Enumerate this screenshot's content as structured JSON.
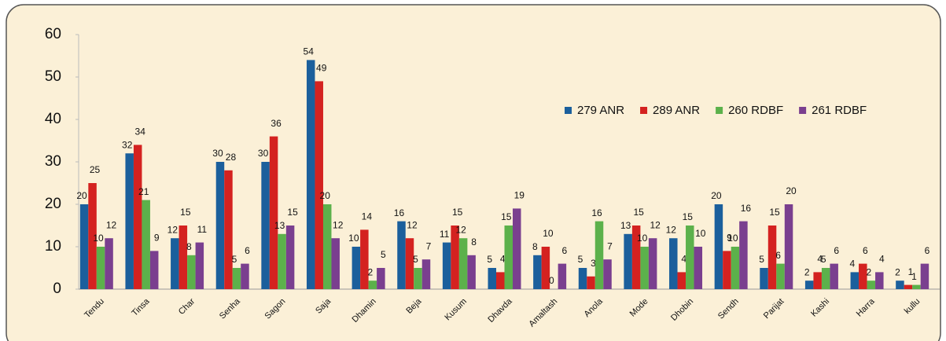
{
  "chart_data": {
    "type": "bar",
    "categories": [
      "Tendu",
      "Tinsa",
      "Char",
      "Senha",
      "Sagon",
      "Saja",
      "Dhamin",
      "Beja",
      "Kusum",
      "Dhavda",
      "Amaltash",
      "Anola",
      "Mode",
      "Dhobin",
      "Sendh",
      "Parijat",
      "Kashi",
      "Harra",
      "kullu"
    ],
    "series": [
      {
        "name": "279 ANR",
        "color": "#1b5f9c",
        "values": [
          20,
          32,
          12,
          30,
          30,
          54,
          10,
          16,
          11,
          5,
          8,
          5,
          13,
          12,
          20,
          5,
          2,
          4,
          2
        ]
      },
      {
        "name": "289 ANR",
        "color": "#d42220",
        "values": [
          25,
          34,
          15,
          28,
          36,
          49,
          14,
          12,
          15,
          4,
          10,
          3,
          15,
          4,
          9,
          15,
          4,
          6,
          1
        ]
      },
      {
        "name": "260 RDBF",
        "color": "#5cb14b",
        "values": [
          10,
          21,
          8,
          5,
          13,
          20,
          2,
          5,
          12,
          15,
          0,
          16,
          10,
          15,
          10,
          6,
          5,
          2,
          1
        ]
      },
      {
        "name": "261 RDBF",
        "color": "#7a3f8f",
        "values": [
          12,
          9,
          11,
          6,
          15,
          12,
          5,
          7,
          8,
          19,
          6,
          7,
          12,
          10,
          16,
          20,
          6,
          4,
          6
        ]
      }
    ],
    "ylim": [
      0,
      60
    ],
    "yticks": [
      0,
      10,
      20,
      30,
      40,
      50,
      60
    ]
  }
}
